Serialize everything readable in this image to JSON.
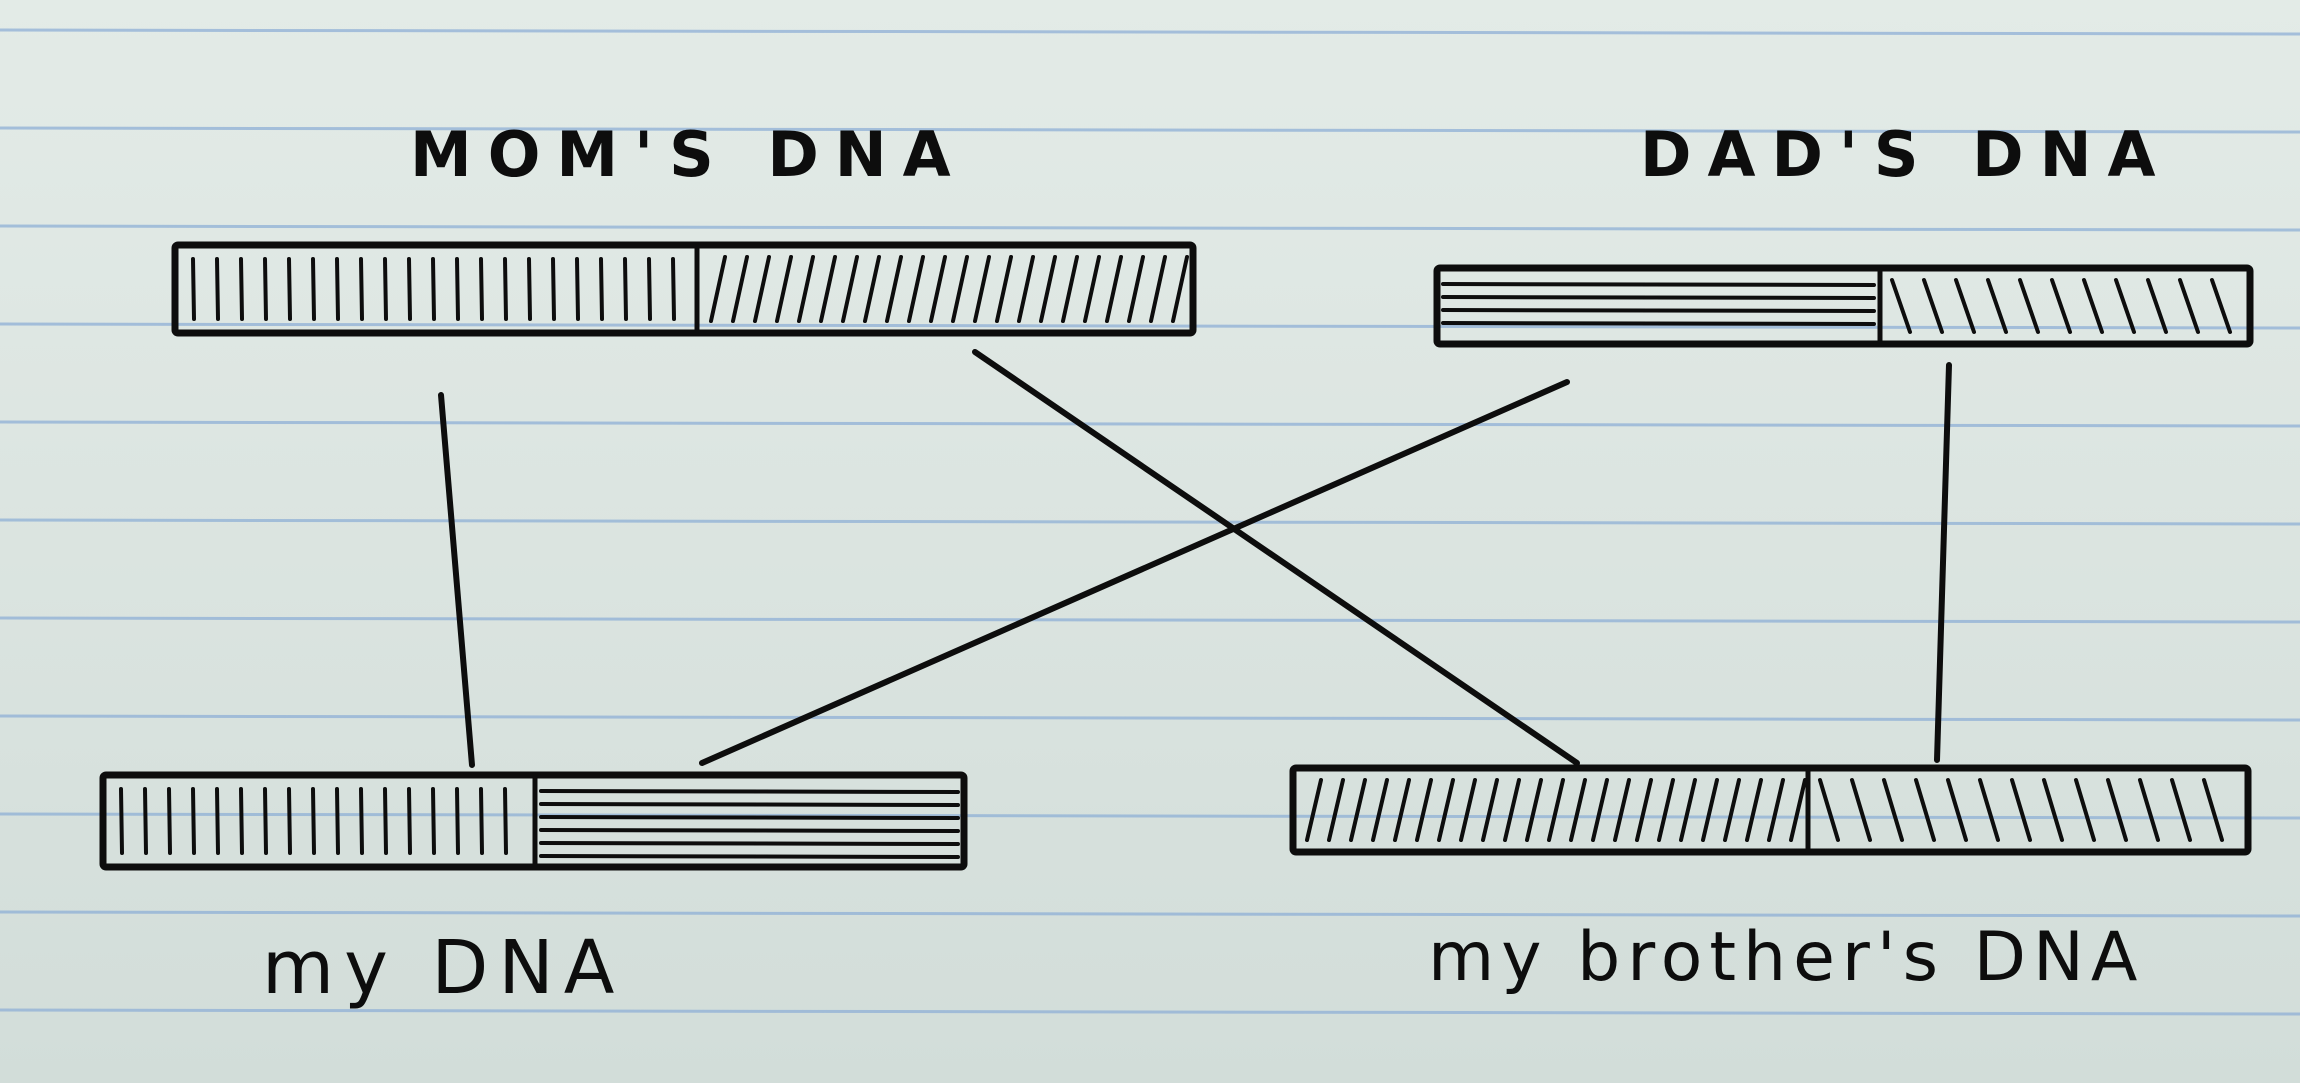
{
  "labels": {
    "mom": "MOM'S DNA",
    "dad": "DAD'S DNA",
    "mine": "my DNA",
    "brother": "my brother's DNA"
  },
  "colors": {
    "paper": "#dde6e1",
    "ruling": "#8fb0d6",
    "ink": "#0d0d0d"
  },
  "patterns": {
    "mom_first_half": "vertical-hatch",
    "mom_second_half": "forward-diagonal-hatch",
    "dad_first_half": "horizontal-lines",
    "dad_second_half": "backward-diagonal-hatch"
  }
}
